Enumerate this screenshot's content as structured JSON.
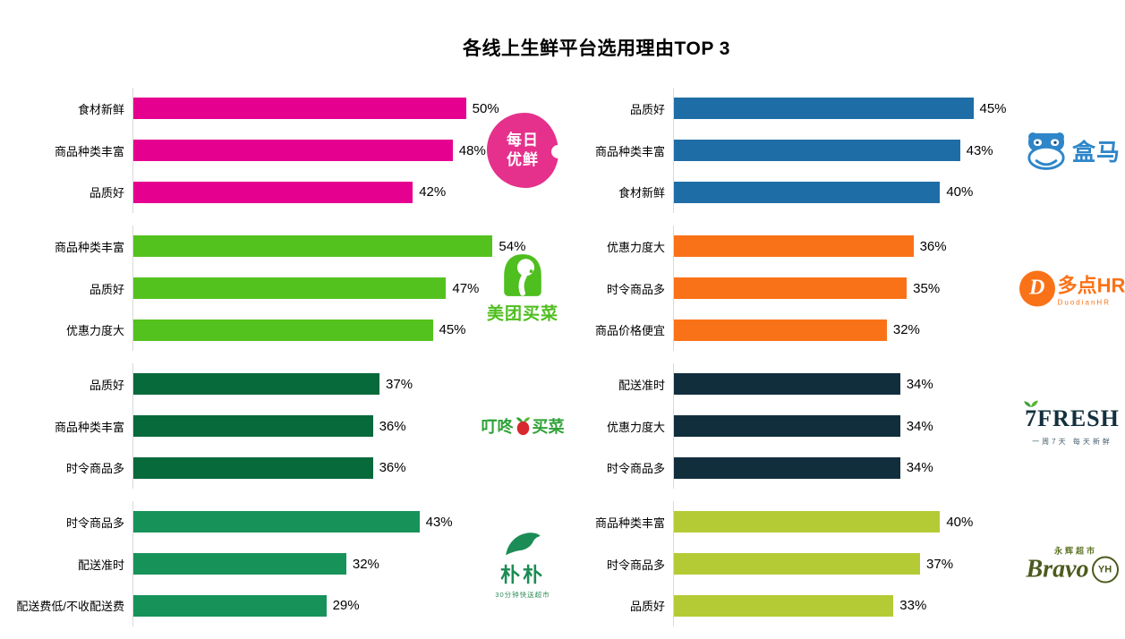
{
  "title": "各线上生鲜平台选用理由TOP 3",
  "chart_data": {
    "type": "bar",
    "orientation": "horizontal",
    "unit": "%",
    "axis_max": 60,
    "title": "各线上生鲜平台选用理由TOP 3",
    "groups": [
      {
        "platform": "每日优鲜",
        "color": "#E6008F",
        "items": [
          {
            "label": "食材新鲜",
            "value": 50,
            "value_label": "50%"
          },
          {
            "label": "商品种类丰富",
            "value": 48,
            "value_label": "48%"
          },
          {
            "label": "品质好",
            "value": 42,
            "value_label": "42%"
          }
        ]
      },
      {
        "platform": "盒马",
        "color": "#1F6DA6",
        "items": [
          {
            "label": "品质好",
            "value": 45,
            "value_label": "45%"
          },
          {
            "label": "商品种类丰富",
            "value": 43,
            "value_label": "43%"
          },
          {
            "label": "食材新鲜",
            "value": 40,
            "value_label": "40%"
          }
        ]
      },
      {
        "platform": "美团买菜",
        "color": "#54C21E",
        "items": [
          {
            "label": "商品种类丰富",
            "value": 54,
            "value_label": "54%"
          },
          {
            "label": "品质好",
            "value": 47,
            "value_label": "47%"
          },
          {
            "label": "优惠力度大",
            "value": 45,
            "value_label": "45%"
          }
        ]
      },
      {
        "platform": "多点",
        "color": "#FA7218",
        "items": [
          {
            "label": "优惠力度大",
            "value": 36,
            "value_label": "36%"
          },
          {
            "label": "时令商品多",
            "value": 35,
            "value_label": "35%"
          },
          {
            "label": "商品价格便宜",
            "value": 32,
            "value_label": "32%"
          }
        ]
      },
      {
        "platform": "叮咚买菜",
        "color": "#066A3B",
        "items": [
          {
            "label": "品质好",
            "value": 37,
            "value_label": "37%"
          },
          {
            "label": "商品种类丰富",
            "value": 36,
            "value_label": "36%"
          },
          {
            "label": "时令商品多",
            "value": 36,
            "value_label": "36%"
          }
        ]
      },
      {
        "platform": "7FRESH",
        "color": "#112E3D",
        "items": [
          {
            "label": "配送准时",
            "value": 34,
            "value_label": "34%"
          },
          {
            "label": "优惠力度大",
            "value": 34,
            "value_label": "34%"
          },
          {
            "label": "时令商品多",
            "value": 34,
            "value_label": "34%"
          }
        ]
      },
      {
        "platform": "朴朴",
        "color": "#17935A",
        "items": [
          {
            "label": "时令商品多",
            "value": 43,
            "value_label": "43%"
          },
          {
            "label": "配送准时",
            "value": 32,
            "value_label": "32%"
          },
          {
            "label": "配送费低/不收配送费",
            "value": 29,
            "value_label": "29%"
          }
        ]
      },
      {
        "platform": "永辉超市Bravo",
        "color": "#B5CB35",
        "items": [
          {
            "label": "商品种类丰富",
            "value": 40,
            "value_label": "40%"
          },
          {
            "label": "时令商品多",
            "value": 37,
            "value_label": "37%"
          },
          {
            "label": "品质好",
            "value": 33,
            "value_label": "33%"
          }
        ]
      }
    ]
  },
  "logos": {
    "meiriyouxian": {
      "line1": "每日",
      "line2": "优鲜"
    },
    "hema": {
      "text": "盒马"
    },
    "meituan": {
      "text": "美团买菜"
    },
    "duodian": {
      "initial": "D",
      "text": "多点HR",
      "subtext": "DuodianHR"
    },
    "dingdong": {
      "text_left": "叮咚",
      "text_right": "买菜"
    },
    "sevenfresh": {
      "text": "7FRESH",
      "subtext": "一周7天  每天新鲜"
    },
    "pupu": {
      "text": "朴朴",
      "subtext": "30分钟快送超市"
    },
    "bravo": {
      "suptext": "永辉超市",
      "text": "Bravo",
      "badge": "YH"
    }
  }
}
